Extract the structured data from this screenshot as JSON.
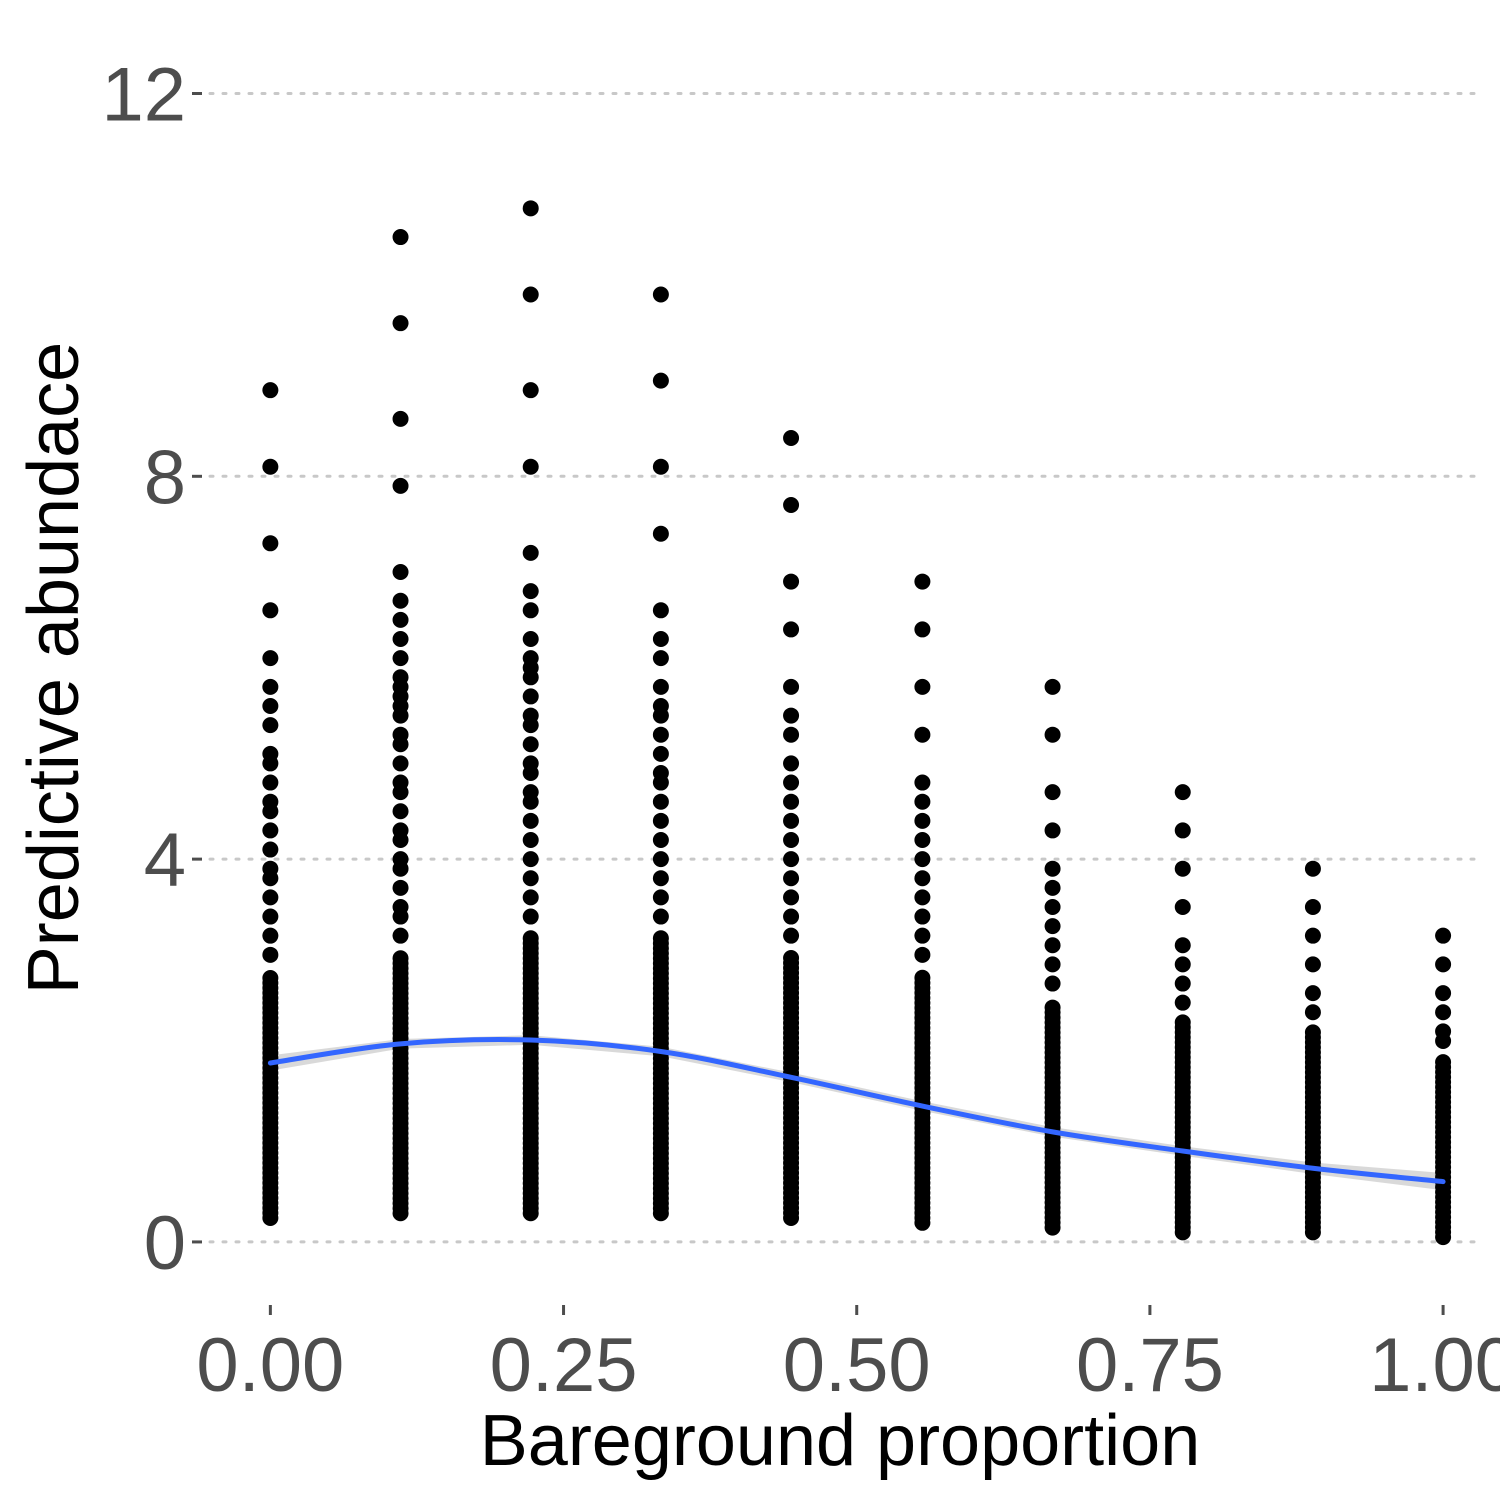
{
  "chart_data": {
    "type": "scatter",
    "title": "",
    "xlabel": "Bareground proportion",
    "ylabel": "Predictive abundace",
    "xlim": [
      -0.06,
      1.04
    ],
    "ylim": [
      -0.45,
      12.35
    ],
    "x_ticks": [
      0,
      0.25,
      0.5,
      0.75,
      1
    ],
    "x_tick_labels": [
      "0.00",
      "0.25",
      "0.50",
      "0.75",
      "1.00"
    ],
    "y_ticks": [
      0,
      4,
      8,
      12
    ],
    "y_tick_labels": [
      "0",
      "4",
      "8",
      "12"
    ],
    "grid": "horizontal dotted major gridlines",
    "legend": "none",
    "colors": {
      "points": "#000000",
      "smooth": "#3366ff",
      "ribbon": "#cccccc",
      "grid": "#c8c8c8",
      "tick_text": "#4d4d4d"
    },
    "point_columns": [
      {
        "x": 0.0,
        "min": 0.25,
        "dense_max": 2.8,
        "outliers": [
          3.0,
          3.2,
          3.4,
          3.6,
          3.8,
          3.9,
          4.1,
          4.3,
          4.5,
          4.6,
          4.8,
          5.0,
          5.1,
          5.4,
          5.6,
          5.8,
          6.1,
          6.6,
          7.3,
          8.1,
          8.9
        ]
      },
      {
        "x": 0.111,
        "min": 0.3,
        "dense_max": 3.0,
        "outliers": [
          3.2,
          3.4,
          3.5,
          3.7,
          3.9,
          4.0,
          4.2,
          4.3,
          4.5,
          4.7,
          4.8,
          5.0,
          5.2,
          5.3,
          5.5,
          5.6,
          5.7,
          5.8,
          5.9,
          6.1,
          6.3,
          6.5,
          6.7,
          7.0,
          7.9,
          8.6,
          9.6,
          10.5
        ]
      },
      {
        "x": 0.222,
        "min": 0.3,
        "dense_max": 3.2,
        "outliers": [
          3.4,
          3.6,
          3.8,
          4.0,
          4.2,
          4.4,
          4.6,
          4.7,
          4.9,
          5.0,
          5.2,
          5.4,
          5.5,
          5.7,
          5.9,
          6.0,
          6.1,
          6.3,
          6.6,
          6.8,
          7.2,
          8.1,
          8.9,
          9.9,
          10.8
        ]
      },
      {
        "x": 0.333,
        "min": 0.3,
        "dense_max": 3.2,
        "outliers": [
          3.4,
          3.6,
          3.8,
          4.0,
          4.2,
          4.4,
          4.6,
          4.8,
          4.9,
          5.1,
          5.3,
          5.5,
          5.6,
          5.8,
          6.1,
          6.3,
          6.6,
          7.4,
          8.1,
          9.0,
          9.9
        ]
      },
      {
        "x": 0.444,
        "min": 0.25,
        "dense_max": 3.0,
        "outliers": [
          3.2,
          3.4,
          3.6,
          3.8,
          4.0,
          4.2,
          4.4,
          4.6,
          4.8,
          5.0,
          5.3,
          5.5,
          5.8,
          6.4,
          6.9,
          7.7,
          8.4
        ]
      },
      {
        "x": 0.556,
        "min": 0.2,
        "dense_max": 2.8,
        "outliers": [
          3.0,
          3.2,
          3.4,
          3.6,
          3.8,
          4.0,
          4.2,
          4.4,
          4.6,
          4.8,
          5.3,
          5.8,
          6.4,
          6.9
        ]
      },
      {
        "x": 0.667,
        "min": 0.15,
        "dense_max": 2.5,
        "outliers": [
          2.7,
          2.9,
          3.1,
          3.3,
          3.5,
          3.7,
          3.9,
          4.3,
          4.7,
          5.3,
          5.8
        ]
      },
      {
        "x": 0.778,
        "min": 0.1,
        "dense_max": 2.3,
        "outliers": [
          2.5,
          2.7,
          2.9,
          3.1,
          3.5,
          3.9,
          4.3,
          4.7
        ]
      },
      {
        "x": 0.889,
        "min": 0.1,
        "dense_max": 2.2,
        "outliers": [
          2.4,
          2.6,
          2.9,
          3.2,
          3.5,
          3.9
        ]
      },
      {
        "x": 1.0,
        "min": 0.05,
        "dense_max": 1.9,
        "outliers": [
          2.1,
          2.2,
          2.4,
          2.6,
          2.9,
          3.2
        ]
      }
    ],
    "smooth": {
      "x": [
        0.0,
        0.111,
        0.222,
        0.333,
        0.444,
        0.556,
        0.667,
        0.778,
        0.889,
        1.0
      ],
      "y": [
        1.87,
        2.07,
        2.11,
        1.99,
        1.72,
        1.42,
        1.15,
        0.95,
        0.77,
        0.63
      ],
      "ribbon_halfwidth": [
        0.08,
        0.05,
        0.05,
        0.05,
        0.05,
        0.05,
        0.05,
        0.05,
        0.06,
        0.09
      ]
    }
  }
}
